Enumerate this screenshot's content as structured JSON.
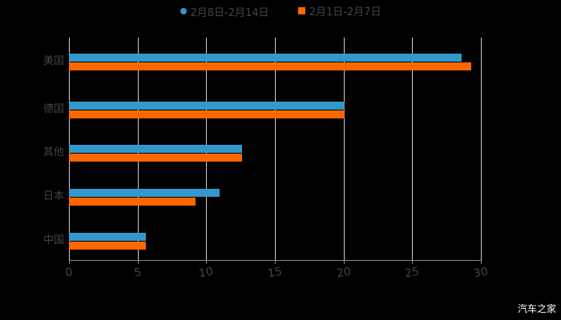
{
  "chart_data": {
    "type": "bar",
    "orientation": "horizontal",
    "title": "",
    "categories": [
      "美国",
      "德国",
      "其他",
      "日本",
      "中国"
    ],
    "series": [
      {
        "name": "2月8日-2月14日",
        "color": "#3399cc",
        "values": [
          28.6,
          20.1,
          12.6,
          11.0,
          5.6
        ]
      },
      {
        "name": "2月1日-2月7日",
        "color": "#ff6600",
        "values": [
          29.3,
          20.1,
          12.6,
          9.2,
          5.6
        ]
      }
    ],
    "xlabel": "",
    "ylabel": "",
    "xlim": [
      0,
      30
    ],
    "xticks": [
      "0",
      "5",
      "10",
      "15",
      "20",
      "25",
      "30"
    ],
    "grid": true,
    "legend_position": "top"
  },
  "legend": {
    "series1": "2月8日-2月14日",
    "series2": "2月1日-2月7日"
  },
  "watermark": "汽车之家"
}
